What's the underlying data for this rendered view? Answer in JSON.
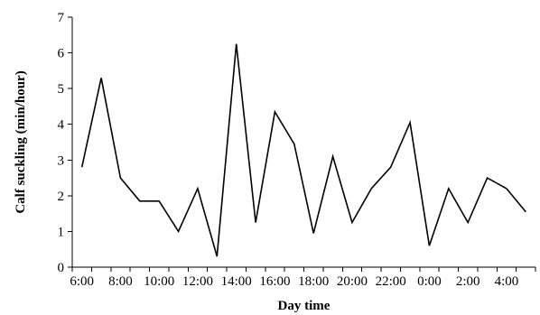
{
  "chart_data": {
    "type": "line",
    "xlabel": "Day time",
    "ylabel": "Calf suckling (min/hour)",
    "ylim": [
      0,
      7
    ],
    "yticks": [
      "0",
      "1",
      "2",
      "3",
      "4",
      "5",
      "6",
      "7"
    ],
    "xtick_labels": [
      "6:00",
      "8:00",
      "10:00",
      "12:00",
      "14:00",
      "16:00",
      "18:00",
      "20:00",
      "22:00",
      "0:00",
      "2:00",
      "4:00"
    ],
    "grid": false,
    "legend": false,
    "x": [
      "6:00",
      "7:00",
      "8:00",
      "9:00",
      "10:00",
      "11:00",
      "12:00",
      "13:00",
      "14:00",
      "15:00",
      "16:00",
      "17:00",
      "18:00",
      "19:00",
      "20:00",
      "21:00",
      "22:00",
      "23:00",
      "0:00",
      "1:00",
      "2:00",
      "3:00",
      "4:00",
      "5:00"
    ],
    "series": [
      {
        "values": [
          2.8,
          5.3,
          2.5,
          1.85,
          1.85,
          1.0,
          2.2,
          0.3,
          6.25,
          1.25,
          4.35,
          3.45,
          0.95,
          3.1,
          1.25,
          2.2,
          2.8,
          4.05,
          0.6,
          2.2,
          1.25,
          2.5,
          2.2,
          1.55
        ]
      }
    ],
    "colors": {
      "line": "#000000",
      "axis": "#000000"
    }
  }
}
